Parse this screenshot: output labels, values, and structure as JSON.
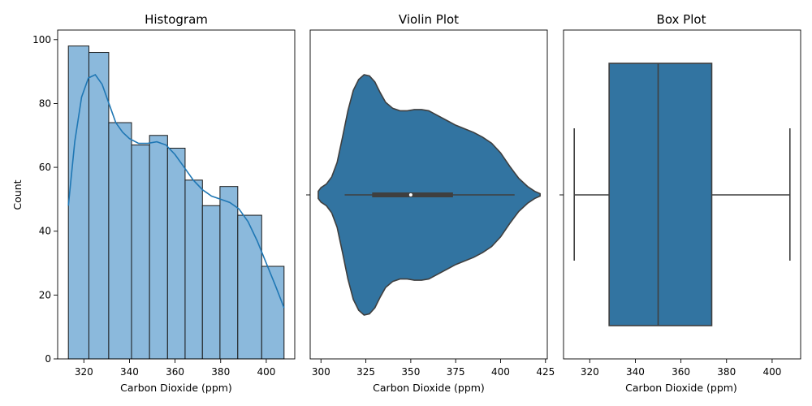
{
  "chart_data": [
    {
      "type": "bar",
      "title": "Histogram",
      "xlabel": "Carbon Dioxide (ppm)",
      "ylabel": "Count",
      "xlim": [
        308.5,
        412.5
      ],
      "ylim": [
        0,
        103
      ],
      "xticks": [
        "320",
        "340",
        "360",
        "380",
        "400"
      ],
      "yticks": [
        "0",
        "20",
        "40",
        "60",
        "80",
        "100"
      ],
      "bin_edges": [
        313.2,
        322.2,
        330.9,
        340.9,
        348.8,
        356.7,
        364.4,
        372.0,
        379.7,
        387.5,
        398.0,
        407.8
      ],
      "counts": [
        98,
        96,
        74,
        67,
        70,
        66,
        56,
        48,
        54,
        45,
        29
      ],
      "kde": {
        "x": [
          313.2,
          316,
          319,
          322,
          325,
          328,
          331,
          334,
          337,
          340,
          344,
          348,
          352,
          356,
          360,
          364,
          368,
          372,
          376,
          380,
          384,
          388,
          392,
          396,
          400,
          404,
          407.8
        ],
        "y": [
          48,
          68,
          82,
          88,
          89,
          86,
          80,
          74,
          71,
          69,
          67.5,
          67.5,
          68,
          67,
          64,
          60,
          56,
          53,
          51,
          50,
          49,
          47,
          43,
          37,
          30,
          23,
          16
        ]
      },
      "colors": {
        "bar": "#8bb9dc",
        "edge": "#1a1a1a",
        "kde": "#1f77b4"
      }
    },
    {
      "type": "violin",
      "title": "Violin Plot",
      "xlabel": "Carbon Dioxide (ppm)",
      "ylabel": "",
      "xlim": [
        294,
        426
      ],
      "xticks": [
        "300",
        "325",
        "350",
        "375",
        "400",
        "425"
      ],
      "density_profile": {
        "x": [
          298.5,
          300,
          303,
          306,
          309,
          312,
          315,
          318,
          321,
          324,
          327,
          330,
          333,
          336,
          340,
          344,
          348,
          352,
          356,
          360,
          365,
          370,
          375,
          380,
          385,
          390,
          395,
          400,
          405,
          410,
          415,
          419,
          422
        ],
        "half_width": [
          0.03,
          0.06,
          0.09,
          0.15,
          0.27,
          0.48,
          0.7,
          0.87,
          0.96,
          1.0,
          0.99,
          0.94,
          0.85,
          0.77,
          0.72,
          0.7,
          0.7,
          0.71,
          0.71,
          0.7,
          0.66,
          0.62,
          0.58,
          0.55,
          0.52,
          0.48,
          0.43,
          0.35,
          0.24,
          0.14,
          0.07,
          0.03,
          0.01
        ]
      },
      "box": {
        "min": 313.2,
        "q1": 328.5,
        "median": 350.0,
        "q3": 373.5,
        "max": 407.8
      },
      "colors": {
        "fill": "#3274a1",
        "edge": "#3f3f3f",
        "median": "#ffffff"
      }
    },
    {
      "type": "box",
      "title": "Box Plot",
      "xlabel": "Carbon Dioxide (ppm)",
      "ylabel": "",
      "xlim": [
        308.5,
        412.5
      ],
      "xticks": [
        "320",
        "340",
        "360",
        "380",
        "400"
      ],
      "box": {
        "min": 313.2,
        "q1": 328.5,
        "median": 350.0,
        "q3": 373.5,
        "max": 407.8
      },
      "colors": {
        "fill": "#3274a1",
        "edge": "#3f3f3f"
      }
    }
  ]
}
